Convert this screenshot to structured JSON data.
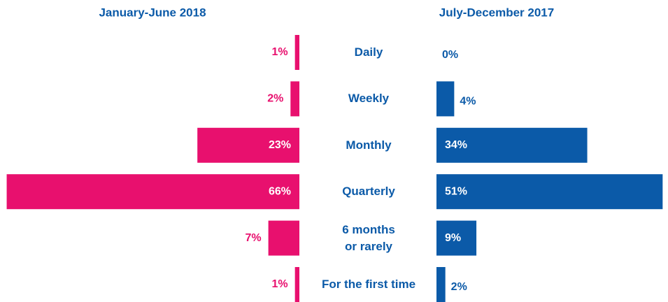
{
  "chart_data": {
    "type": "butterfly",
    "categories": [
      "Daily",
      "Weekly",
      "Monthly",
      "Quarterly",
      "6 months\nor rarely",
      "For the first time"
    ],
    "series": [
      {
        "name": "January-June 2018",
        "color": "#e8106e",
        "values": [
          1,
          2,
          23,
          66,
          7,
          1
        ],
        "value_labels": [
          "1%",
          "2%",
          "23%",
          "66%",
          "7%",
          "1%"
        ]
      },
      {
        "name": "July-December 2017",
        "color": "#0b5aa8",
        "values": [
          0,
          4,
          34,
          51,
          9,
          2
        ],
        "value_labels": [
          "0%",
          "4%",
          "34%",
          "51%",
          "9%",
          "2%"
        ]
      }
    ]
  }
}
